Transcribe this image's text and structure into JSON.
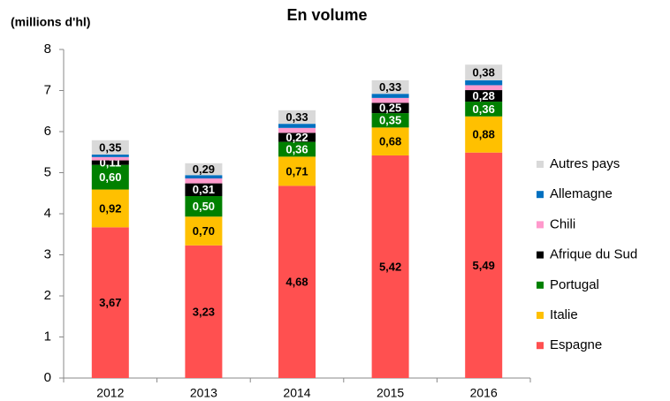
{
  "chart_data": {
    "type": "stacked_bar",
    "title": "En volume",
    "y_axis_label": "(millions d'hl)",
    "categories": [
      "2012",
      "2013",
      "2014",
      "2015",
      "2016"
    ],
    "ylim": [
      0,
      8
    ],
    "yticks": [
      0,
      1,
      2,
      3,
      4,
      5,
      6,
      7,
      8
    ],
    "grid": false,
    "legend": "right",
    "series": [
      {
        "name": "Espagne",
        "color": "#ff5050",
        "values": [
          3.67,
          3.23,
          4.68,
          5.42,
          5.49
        ],
        "value_labels": [
          "3,67",
          "3,23",
          "4,68",
          "5,42",
          "5,49"
        ]
      },
      {
        "name": "Italie",
        "color": "#ffc000",
        "values": [
          0.92,
          0.7,
          0.71,
          0.68,
          0.88
        ],
        "value_labels": [
          "0,92",
          "0,70",
          "0,71",
          "0,68",
          "0,88"
        ]
      },
      {
        "name": "Portugal",
        "color": "#008000",
        "values": [
          0.6,
          0.5,
          0.36,
          0.35,
          0.36
        ],
        "value_labels": [
          "0,60",
          "0,50",
          "0,36",
          "0,35",
          "0,36"
        ]
      },
      {
        "name": "Afrique du Sud",
        "color": "#000000",
        "values": [
          0.11,
          0.31,
          0.22,
          0.25,
          0.28
        ],
        "value_labels": [
          "0,11",
          "0,31",
          "0,22",
          "0,25",
          "0,28"
        ]
      },
      {
        "name": "Chili",
        "color": "#ff99cc",
        "values": [
          0.08,
          0.12,
          0.12,
          0.12,
          0.12
        ]
      },
      {
        "name": "Allemagne",
        "color": "#0070c0",
        "values": [
          0.06,
          0.08,
          0.1,
          0.1,
          0.12
        ]
      },
      {
        "name": "Autres pays",
        "color": "#d9d9d9",
        "values": [
          0.35,
          0.29,
          0.33,
          0.33,
          0.38
        ],
        "value_labels": [
          "0,35",
          "0,29",
          "0,33",
          "0,33",
          "0,38"
        ]
      }
    ]
  }
}
